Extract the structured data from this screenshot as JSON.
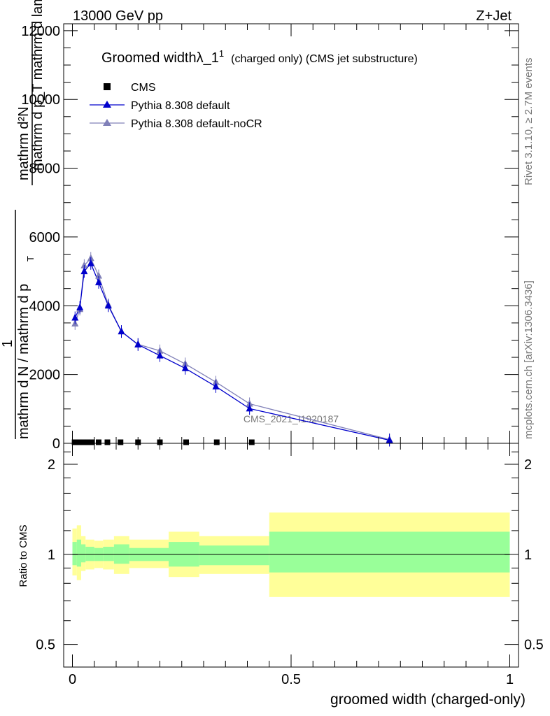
{
  "header": {
    "left": "13000 GeV pp",
    "right": "Z+Jet"
  },
  "side_labels": {
    "rivet": "Rivet 3.1.10, ≥ 2.7M events",
    "mcplots": "mcplots.cern.ch [arXiv:1306.3436]"
  },
  "plot_title": {
    "main": "Groomed widthλ_1",
    "sup": "1",
    "detail": "(charged only) (CMS jet substructure)"
  },
  "watermark": "CMS_2021_I1920187",
  "ylabel_upper": {
    "numerator": "mathrm d²N",
    "denominator": "mathrm d p_T mathrm d lambda",
    "prefix_num": "1",
    "prefix_den": "mathrm d N / mathrm d p",
    "prefix_sub": "T"
  },
  "ylabel_lower": "Ratio to CMS",
  "xlabel": "groomed width (charged-only)",
  "legend": [
    {
      "label": "CMS",
      "color": "#000000",
      "marker": "square"
    },
    {
      "label": "Pythia 8.308 default",
      "color": "#0000cc",
      "marker": "triangle"
    },
    {
      "label": "Pythia 8.308 default-noCR",
      "color": "#8080b8",
      "marker": "triangle"
    }
  ],
  "chart_data": {
    "type": "line",
    "x_range": [
      -0.02,
      1.02
    ],
    "upper": {
      "ylim": [
        0,
        12200
      ],
      "yticks": [
        0,
        2000,
        4000,
        6000,
        8000,
        10000,
        12000
      ],
      "ytick_labels": [
        "0",
        "2000",
        "4000",
        "6000",
        "8000",
        "10000",
        "12000"
      ],
      "series": [
        {
          "name": "CMS",
          "x": [
            0.005,
            0.015,
            0.025,
            0.035,
            0.045,
            0.06,
            0.08,
            0.11,
            0.15,
            0.2,
            0.26,
            0.33,
            0.41
          ],
          "y": [
            10,
            10,
            10,
            10,
            10,
            10,
            10,
            10,
            10,
            10,
            10,
            10,
            10
          ]
        },
        {
          "name": "Pythia 8.308 default",
          "x": [
            0.006,
            0.017,
            0.027,
            0.042,
            0.06,
            0.082,
            0.112,
            0.15,
            0.2,
            0.258,
            0.328,
            0.405,
            0.725
          ],
          "y": [
            3650,
            3950,
            5000,
            5230,
            4680,
            4000,
            3250,
            2870,
            2550,
            2180,
            1650,
            1010,
            90
          ]
        },
        {
          "name": "Pythia 8.308 default-noCR",
          "x": [
            0.006,
            0.017,
            0.027,
            0.042,
            0.06,
            0.082,
            0.112,
            0.15,
            0.2,
            0.258,
            0.328,
            0.405,
            0.725
          ],
          "y": [
            3480,
            3900,
            5170,
            5380,
            4870,
            4030,
            3250,
            2880,
            2690,
            2310,
            1780,
            1150,
            110
          ]
        }
      ]
    },
    "lower": {
      "ylim": [
        0.42,
        2.35
      ],
      "log": true,
      "yticks": [
        0.5,
        1,
        2
      ],
      "ytick_labels": [
        "0.5",
        "1",
        "2"
      ],
      "xticks": [
        0,
        0.5,
        1
      ],
      "xtick_labels": [
        "0",
        "0.5",
        "1"
      ],
      "bands": [
        {
          "x0": 0.0,
          "x1": 0.01,
          "y_lo": 0.85,
          "y_hi": 1.22,
          "g_lo": 0.92,
          "g_hi": 1.1
        },
        {
          "x0": 0.01,
          "x1": 0.02,
          "y_lo": 0.82,
          "y_hi": 1.25,
          "g_lo": 0.91,
          "g_hi": 1.12
        },
        {
          "x0": 0.02,
          "x1": 0.03,
          "y_lo": 0.88,
          "y_hi": 1.15,
          "g_lo": 0.94,
          "g_hi": 1.08
        },
        {
          "x0": 0.03,
          "x1": 0.05,
          "y_lo": 0.89,
          "y_hi": 1.12,
          "g_lo": 0.95,
          "g_hi": 1.06
        },
        {
          "x0": 0.05,
          "x1": 0.07,
          "y_lo": 0.9,
          "y_hi": 1.11,
          "g_lo": 0.95,
          "g_hi": 1.05
        },
        {
          "x0": 0.07,
          "x1": 0.095,
          "y_lo": 0.89,
          "y_hi": 1.12,
          "g_lo": 0.95,
          "g_hi": 1.06
        },
        {
          "x0": 0.095,
          "x1": 0.13,
          "y_lo": 0.86,
          "y_hi": 1.15,
          "g_lo": 0.93,
          "g_hi": 1.08
        },
        {
          "x0": 0.13,
          "x1": 0.22,
          "y_lo": 0.9,
          "y_hi": 1.12,
          "g_lo": 0.95,
          "g_hi": 1.05
        },
        {
          "x0": 0.22,
          "x1": 0.29,
          "y_lo": 0.84,
          "y_hi": 1.19,
          "g_lo": 0.91,
          "g_hi": 1.1
        },
        {
          "x0": 0.29,
          "x1": 0.45,
          "y_lo": 0.86,
          "y_hi": 1.15,
          "g_lo": 0.92,
          "g_hi": 1.07
        },
        {
          "x0": 0.45,
          "x1": 1.0,
          "y_lo": 0.72,
          "y_hi": 1.38,
          "g_lo": 0.87,
          "g_hi": 1.19
        }
      ],
      "reference_line": 1
    },
    "colors": {
      "yellow_band": "#ffff99",
      "green_band": "#99ff99",
      "cms": "#000000",
      "default": "#0000cc",
      "noCR": "#8080b8"
    }
  }
}
